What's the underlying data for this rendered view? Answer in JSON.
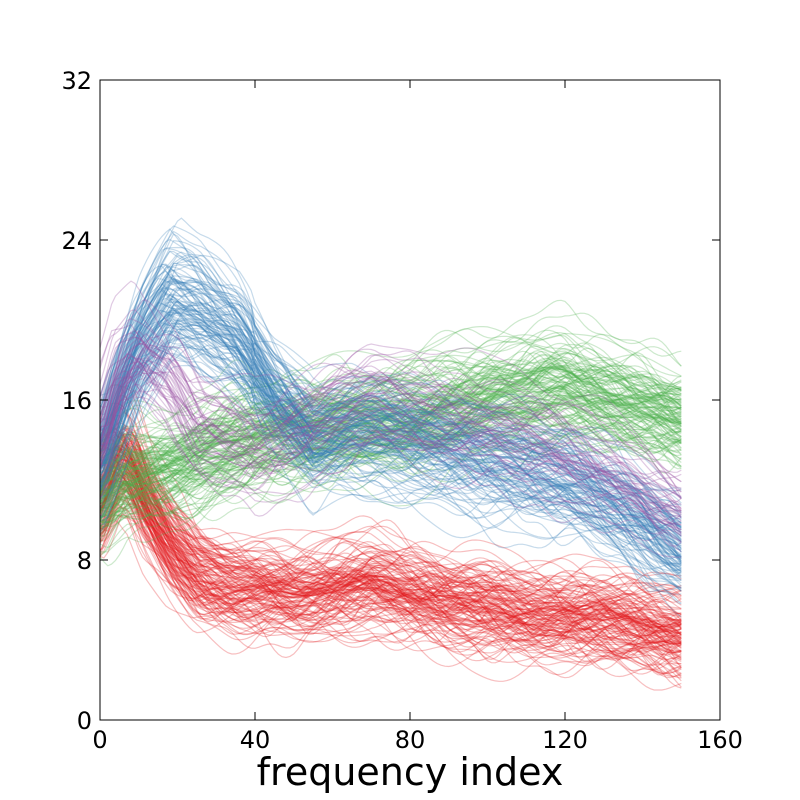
{
  "chart_data": {
    "type": "line",
    "title": "",
    "xlabel": "frequency index",
    "ylabel": "",
    "xlim": [
      0,
      160
    ],
    "ylim": [
      0,
      32
    ],
    "x_ticks": [
      "0",
      "40",
      "80",
      "120",
      "160"
    ],
    "y_ticks": [
      "0",
      "8",
      "16",
      "24",
      "32"
    ],
    "x_start": 0,
    "x_end": 150,
    "grid": false,
    "legend": "none",
    "series": [
      {
        "color": "#e41a1c",
        "opacity": 0.28,
        "count": 140,
        "mean_profile": [
          [
            0,
            11
          ],
          [
            5,
            13.5
          ],
          [
            8,
            13
          ],
          [
            12,
            11
          ],
          [
            18,
            9
          ],
          [
            25,
            7.5
          ],
          [
            35,
            6.8
          ],
          [
            50,
            6.5
          ],
          [
            70,
            7
          ],
          [
            90,
            6
          ],
          [
            110,
            5.5
          ],
          [
            130,
            5.3
          ],
          [
            150,
            4.5
          ]
        ]
      },
      {
        "color": "#4daf4a",
        "opacity": 0.28,
        "count": 140,
        "mean_profile": [
          [
            0,
            11
          ],
          [
            5,
            12
          ],
          [
            15,
            12.5
          ],
          [
            25,
            13
          ],
          [
            40,
            14
          ],
          [
            60,
            14.5
          ],
          [
            80,
            15
          ],
          [
            100,
            16
          ],
          [
            120,
            16.5
          ],
          [
            140,
            15.5
          ],
          [
            150,
            15
          ]
        ]
      },
      {
        "color": "#377eb8",
        "opacity": 0.28,
        "count": 120,
        "mean_profile": [
          [
            0,
            13
          ],
          [
            5,
            16
          ],
          [
            10,
            18.5
          ],
          [
            18,
            21
          ],
          [
            25,
            20.5
          ],
          [
            35,
            19
          ],
          [
            45,
            16
          ],
          [
            55,
            14
          ],
          [
            65,
            14.5
          ],
          [
            80,
            14
          ],
          [
            100,
            13
          ],
          [
            120,
            12
          ],
          [
            140,
            10
          ],
          [
            150,
            8.5
          ]
        ]
      },
      {
        "color": "#984ea3",
        "opacity": 0.3,
        "count": 45,
        "mean_profile": [
          [
            0,
            14
          ],
          [
            5,
            17.5
          ],
          [
            10,
            18.5
          ],
          [
            18,
            17
          ],
          [
            25,
            14.5
          ],
          [
            40,
            13.5
          ],
          [
            55,
            15
          ],
          [
            70,
            16
          ],
          [
            90,
            15
          ],
          [
            110,
            14
          ],
          [
            130,
            12.5
          ],
          [
            150,
            10.5
          ]
        ]
      }
    ]
  }
}
